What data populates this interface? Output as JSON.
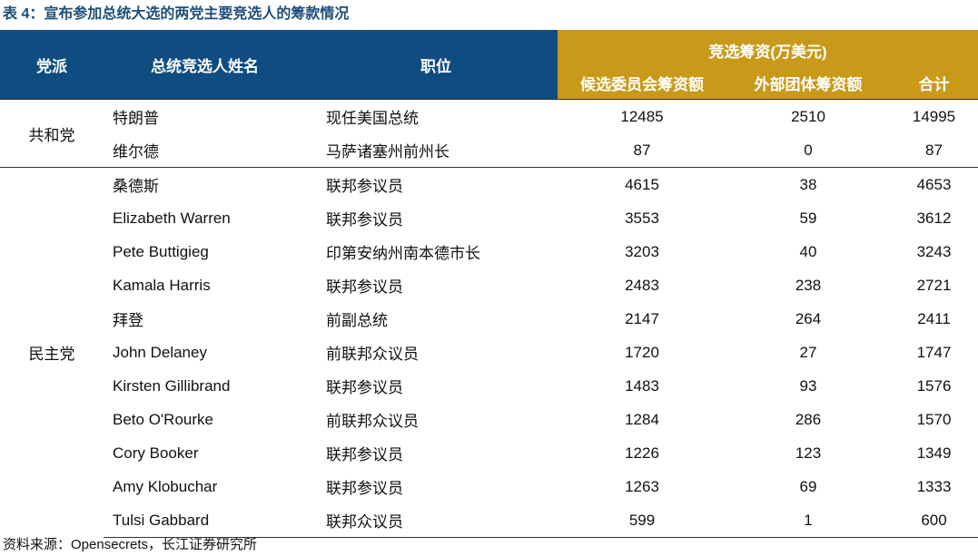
{
  "caption": "表 4：宣布参加总统大选的两党主要竞选人的筹款情况",
  "header": {
    "party": "党派",
    "name": "总统竞选人姓名",
    "position": "职位",
    "group": "竞选筹资(万美元)",
    "committee": "候选委员会筹资额",
    "outside": "外部团体筹资额",
    "total": "合计"
  },
  "groups": [
    {
      "party": "共和党",
      "rows": [
        {
          "name": "特朗普",
          "position": "现任美国总统",
          "committee": "12485",
          "outside": "2510",
          "total": "14995"
        },
        {
          "name": "维尔德",
          "position": "马萨诸塞州前州长",
          "committee": "87",
          "outside": "0",
          "total": "87"
        }
      ]
    },
    {
      "party": "民主党",
      "rows": [
        {
          "name": "桑德斯",
          "position": "联邦参议员",
          "committee": "4615",
          "outside": "38",
          "total": "4653"
        },
        {
          "name": "Elizabeth Warren",
          "position": "联邦参议员",
          "committee": "3553",
          "outside": "59",
          "total": "3612"
        },
        {
          "name": "Pete Buttigieg",
          "position": "印第安纳州南本德市长",
          "committee": "3203",
          "outside": "40",
          "total": "3243"
        },
        {
          "name": "Kamala Harris",
          "position": "联邦参议员",
          "committee": "2483",
          "outside": "238",
          "total": "2721"
        },
        {
          "name": "拜登",
          "position": "前副总统",
          "committee": "2147",
          "outside": "264",
          "total": "2411"
        },
        {
          "name": "John Delaney",
          "position": "前联邦众议员",
          "committee": "1720",
          "outside": "27",
          "total": "1747"
        },
        {
          "name": "Kirsten Gillibrand",
          "position": "联邦参议员",
          "committee": "1483",
          "outside": "93",
          "total": "1576"
        },
        {
          "name": "Beto O'Rourke",
          "position": "前联邦众议员",
          "committee": "1284",
          "outside": "286",
          "total": "1570"
        },
        {
          "name": "Cory Booker",
          "position": "联邦参议员",
          "committee": "1226",
          "outside": "123",
          "total": "1349"
        },
        {
          "name": "Amy Klobuchar",
          "position": "联邦参议员",
          "committee": "1263",
          "outside": "69",
          "total": "1333"
        },
        {
          "name": "Tulsi Gabbard",
          "position": "联邦众议员",
          "committee": "599",
          "outside": "1",
          "total": "600"
        }
      ]
    }
  ],
  "source": "资料来源：Opensecrets，长江证券研究所"
}
